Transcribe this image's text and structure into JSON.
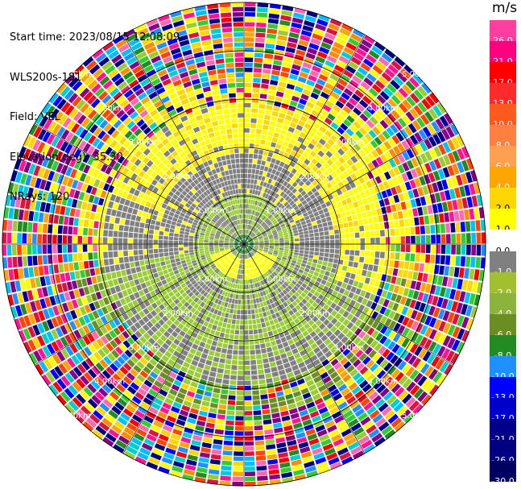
{
  "header": {
    "start_time": "Start time: 2023/08/15 12:08:09",
    "instrument": "WLS200s-181",
    "field": "Field: VEL",
    "elevation": "Elevation(deg): 35.30",
    "nrays": "NRays: 120"
  },
  "colorbar": {
    "unit": "m/s",
    "labels": [
      "26.0",
      "21.0",
      "17.0",
      "13.0",
      "10.0",
      "8.0",
      "6.0",
      "4.0",
      "2.0",
      "1.0",
      "0.0",
      "-1.0",
      "-2.0",
      "-4.0",
      "-6.0",
      "-8.0",
      "-10.0",
      "-13.0",
      "-17.0",
      "-21.0",
      "-26.0",
      "-30.0"
    ],
    "colors": [
      "#ff3fa0",
      "#ff007f",
      "#ff0000",
      "#ff2a2a",
      "#ff5a1e",
      "#ff8040",
      "#ff9f4f",
      "#ffa500",
      "#ffd700",
      "#ffff00",
      "#ffffff",
      "#808080",
      "#a0c030",
      "#8cb43c",
      "#6b8e23",
      "#228b22",
      "#1e90ff",
      "#0000ff",
      "#0000cd",
      "#00008b",
      "#000080",
      "#000060"
    ]
  },
  "rings": {
    "labels": [
      "1.00km",
      "2.00km",
      "3.00km",
      "4.00km",
      "5.00km"
    ]
  }
}
